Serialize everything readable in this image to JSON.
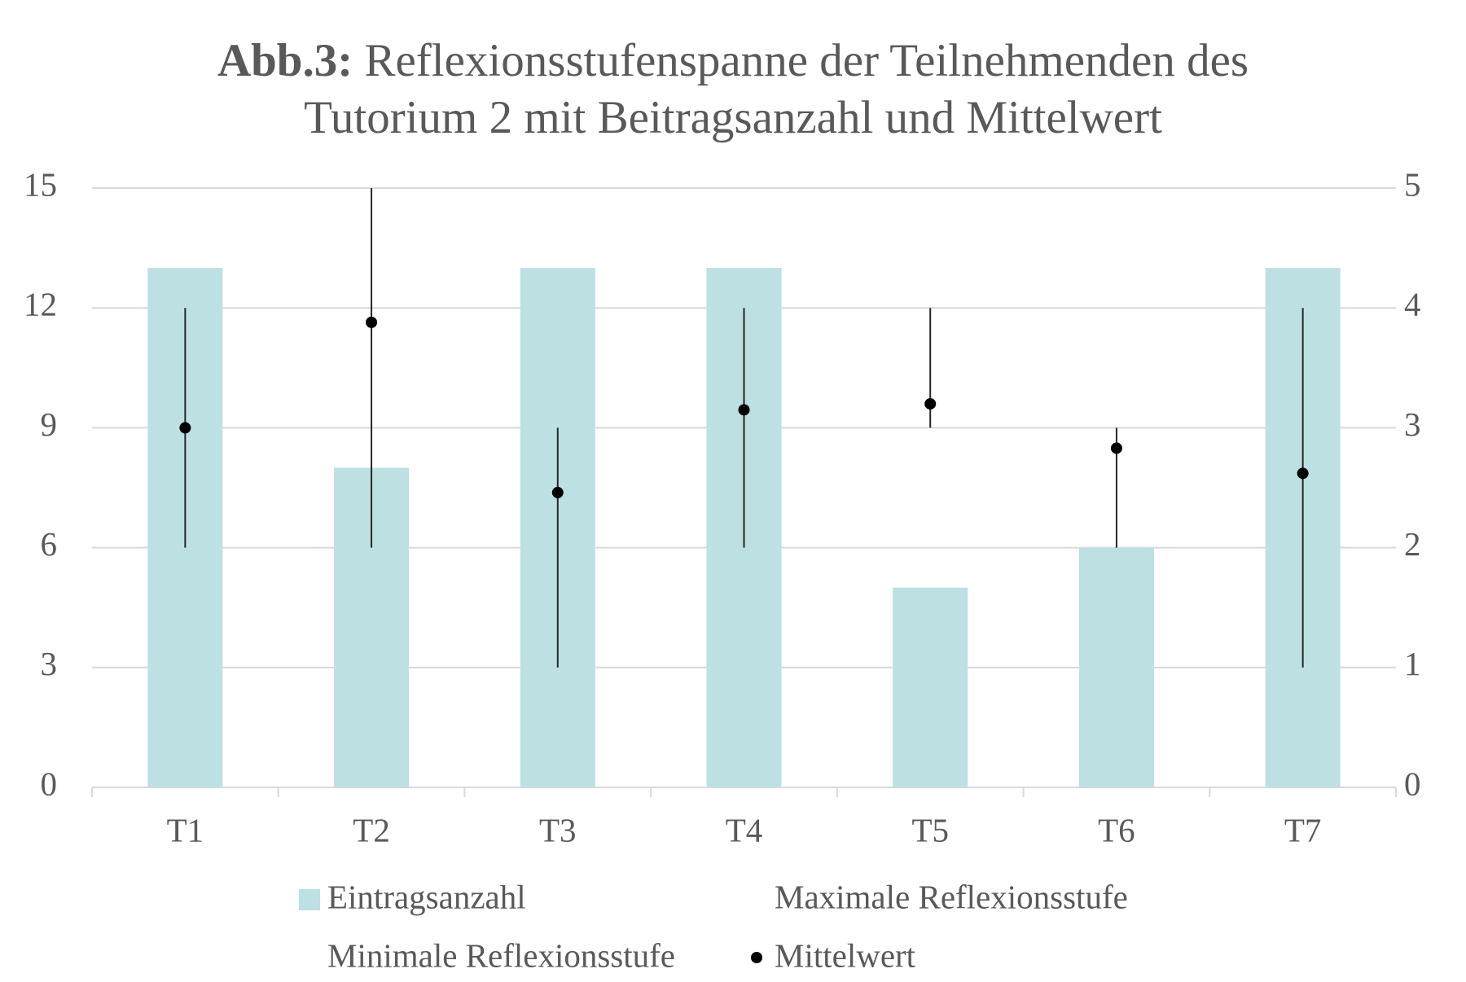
{
  "chart_data": {
    "type": "bar",
    "title_label": "Abb.3:",
    "title_lines": [
      "Reflexionsstufenspanne der Teilnehmenden des",
      "Tutorium 2 mit Beitragsanzahl und Mittelwert"
    ],
    "categories": [
      "T1",
      "T2",
      "T3",
      "T4",
      "T5",
      "T6",
      "T7"
    ],
    "series": [
      {
        "name": "Eintragsanzahl",
        "color": "#bde0e3",
        "values": [
          13,
          8,
          13,
          13,
          5,
          6,
          13
        ]
      },
      {
        "name": "Maximale Reflexionsstufe",
        "color": "#262626",
        "axis": "y2",
        "values": [
          4,
          5,
          3,
          4,
          4,
          3,
          4
        ]
      },
      {
        "name": "Minimale Reflexionsstufe",
        "color": "#262626",
        "axis": "y2",
        "values": [
          2,
          2,
          1,
          2,
          3,
          2,
          1
        ]
      },
      {
        "name": "Mittelwert",
        "color": "#000000",
        "axis": "y2",
        "values": [
          3,
          3.88,
          2.46,
          3.15,
          3.2,
          2.83,
          2.62
        ]
      }
    ],
    "ylim": [
      0,
      15
    ],
    "yticks": [
      0,
      3,
      6,
      9,
      12,
      15
    ],
    "y2lim": [
      0,
      5
    ],
    "y2ticks": [
      0,
      1,
      2,
      3,
      4,
      5
    ],
    "grid": true
  }
}
